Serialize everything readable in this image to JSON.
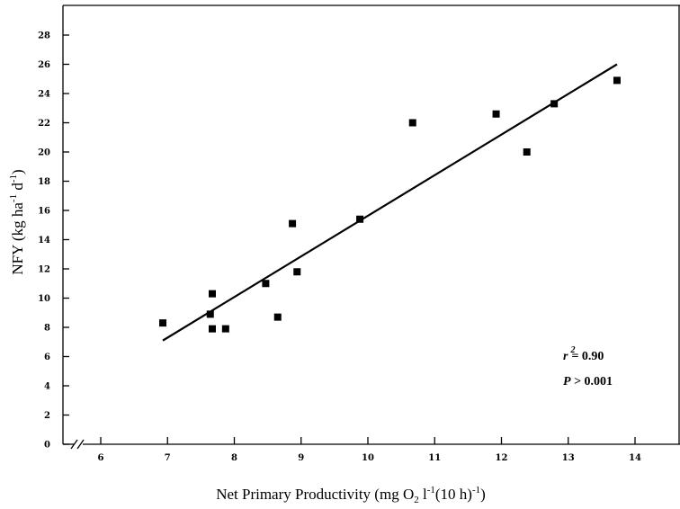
{
  "chart_data": {
    "type": "scatter",
    "title": "",
    "xlabel": {
      "prefix": "Net Primary Productivity  (mg O",
      "sub": "2",
      "mid": " l",
      "sup1": "-1",
      "mid2": "(10 h)",
      "sup2": "-1",
      "suffix": ")"
    },
    "ylabel": {
      "prefix": "NFY (kg ha",
      "sup1": "-1",
      "mid": " d",
      "sup2": "-1",
      "suffix": ")"
    },
    "xlim": [
      5.55,
      14.5
    ],
    "ylim": [
      0,
      30
    ],
    "x_axis_break": true,
    "xticks": [
      6,
      7,
      8,
      9,
      10,
      11,
      12,
      13,
      14
    ],
    "yticks": [
      0,
      2,
      4,
      6,
      8,
      10,
      12,
      14,
      16,
      18,
      20,
      22,
      24,
      26,
      28
    ],
    "grid": false,
    "legend": false,
    "marker": "square",
    "points": [
      {
        "x": 6.93,
        "y": 8.3
      },
      {
        "x": 7.64,
        "y": 8.9
      },
      {
        "x": 7.67,
        "y": 10.3
      },
      {
        "x": 7.67,
        "y": 7.9
      },
      {
        "x": 7.87,
        "y": 7.9
      },
      {
        "x": 8.47,
        "y": 11.0
      },
      {
        "x": 8.65,
        "y": 8.7
      },
      {
        "x": 8.87,
        "y": 15.1
      },
      {
        "x": 8.94,
        "y": 11.8
      },
      {
        "x": 9.88,
        "y": 15.4
      },
      {
        "x": 10.67,
        "y": 22.0
      },
      {
        "x": 11.92,
        "y": 22.6
      },
      {
        "x": 12.38,
        "y": 20.0
      },
      {
        "x": 12.79,
        "y": 23.3
      },
      {
        "x": 13.73,
        "y": 24.9
      }
    ],
    "regression_line": {
      "x": [
        6.93,
        13.73
      ],
      "y": [
        7.1,
        26.0
      ]
    },
    "annotations": {
      "r2_symbol": "r",
      "r2_sup": "2",
      "r2_value": "= 0.90",
      "p_symbol": "P",
      "p_value": " > 0.001"
    }
  }
}
